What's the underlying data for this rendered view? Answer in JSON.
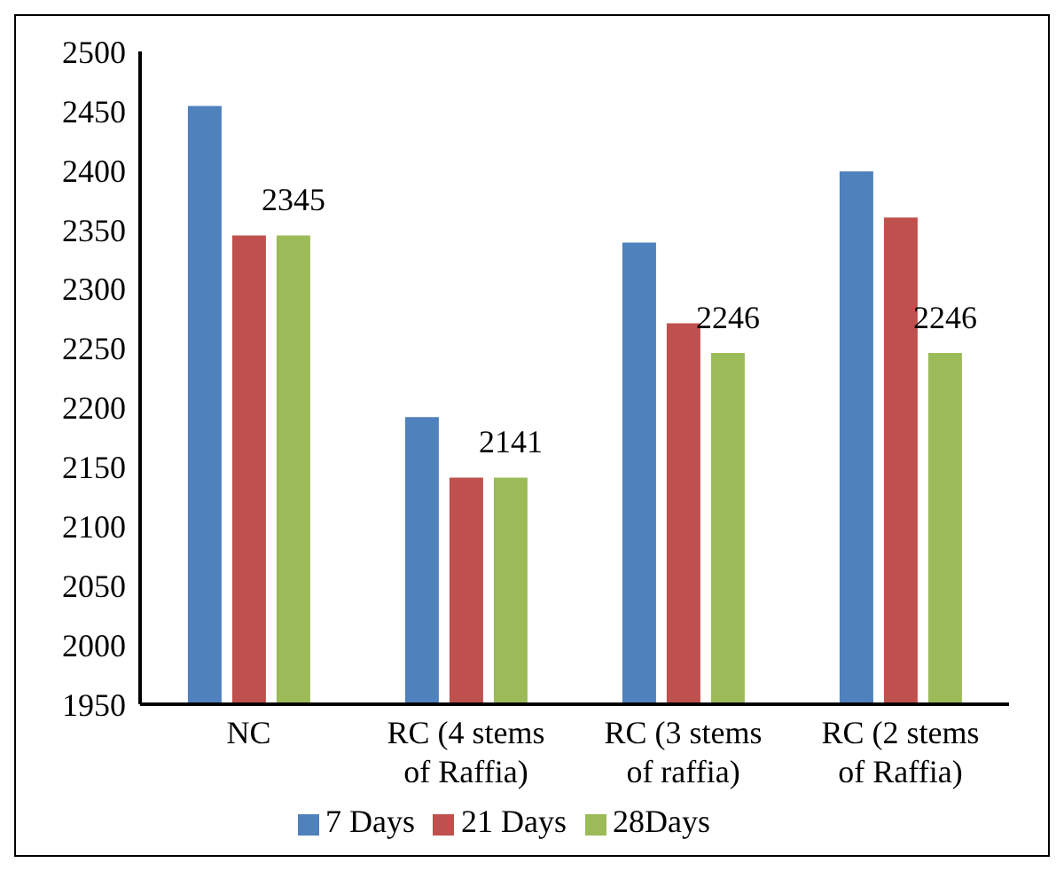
{
  "chart_data": {
    "type": "bar",
    "categories": [
      "NC",
      "RC (4 stems of Raffia)",
      "RC (3 stems of raffia)",
      "RC (2 stems of Raffia)"
    ],
    "series": [
      {
        "name": "7 Days",
        "color": "#4f81bd",
        "values": [
          2454,
          2192,
          2339,
          2399
        ]
      },
      {
        "name": "21 Days",
        "color": "#c0504d",
        "values": [
          2345,
          2141,
          2271,
          2360
        ]
      },
      {
        "name": "28Days",
        "color": "#9bbb59",
        "values": [
          2345,
          2141,
          2246,
          2246
        ],
        "value_labels": [
          "2345",
          "2141",
          "2246",
          "2246"
        ]
      }
    ],
    "ylim": [
      1950,
      2500
    ],
    "yticks": [
      1950,
      2000,
      2050,
      2100,
      2150,
      2200,
      2250,
      2300,
      2350,
      2400,
      2450,
      2500
    ],
    "grid": false,
    "legend": "bottom"
  }
}
